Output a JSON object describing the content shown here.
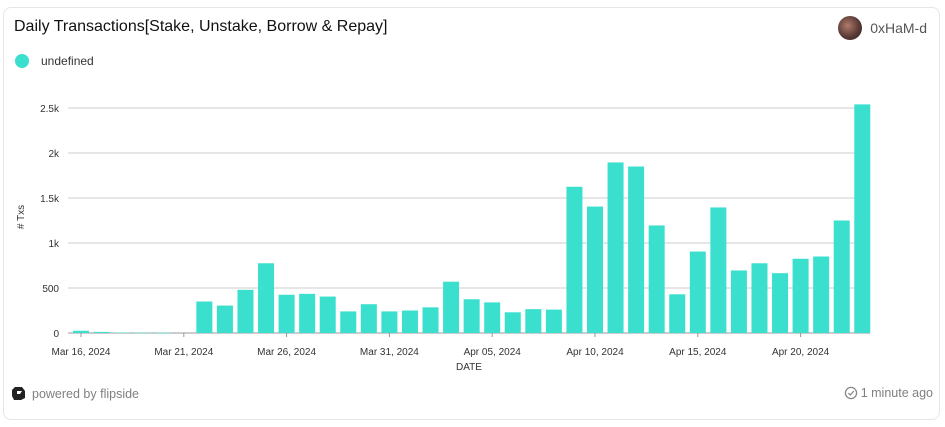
{
  "header": {
    "title": "Daily Transactions[Stake, Unstake, Borrow & Repay]",
    "username": "0xHaM-d"
  },
  "legend": {
    "label": "undefined"
  },
  "footer": {
    "powered_by": "powered by flipside",
    "updated": "1 minute ago"
  },
  "colors": {
    "bar": "#3ae0cd",
    "grid": "#cccccc"
  },
  "chart_data": {
    "type": "bar",
    "xlabel": "DATE",
    "ylabel": "# Txs",
    "ylim": [
      0,
      2500
    ],
    "y_ticks": [
      0,
      500,
      1000,
      1500,
      2000,
      2500
    ],
    "y_tick_labels": [
      "0",
      "500",
      "1k",
      "1.5k",
      "2k",
      "2.5k"
    ],
    "x_tick_labels": [
      {
        "date": "2024-03-16",
        "label": "Mar 16, 2024"
      },
      {
        "date": "2024-03-21",
        "label": "Mar 21, 2024"
      },
      {
        "date": "2024-03-26",
        "label": "Mar 26, 2024"
      },
      {
        "date": "2024-03-31",
        "label": "Mar 31, 2024"
      },
      {
        "date": "2024-04-05",
        "label": "Apr 05, 2024"
      },
      {
        "date": "2024-04-10",
        "label": "Apr 10, 2024"
      },
      {
        "date": "2024-04-15",
        "label": "Apr 15, 2024"
      },
      {
        "date": "2024-04-20",
        "label": "Apr 20, 2024"
      }
    ],
    "grid": true,
    "legend_position": "top-left",
    "series": [
      {
        "name": "undefined",
        "points": [
          {
            "date": "2024-03-16",
            "value": 25
          },
          {
            "date": "2024-03-17",
            "value": 12
          },
          {
            "date": "2024-03-18",
            "value": 5
          },
          {
            "date": "2024-03-19",
            "value": 3
          },
          {
            "date": "2024-03-20",
            "value": 2
          },
          {
            "date": "2024-03-22",
            "value": 350
          },
          {
            "date": "2024-03-23",
            "value": 305
          },
          {
            "date": "2024-03-24",
            "value": 480
          },
          {
            "date": "2024-03-25",
            "value": 775
          },
          {
            "date": "2024-03-26",
            "value": 425
          },
          {
            "date": "2024-03-27",
            "value": 435
          },
          {
            "date": "2024-03-28",
            "value": 405
          },
          {
            "date": "2024-03-29",
            "value": 240
          },
          {
            "date": "2024-03-30",
            "value": 320
          },
          {
            "date": "2024-03-31",
            "value": 240
          },
          {
            "date": "2024-04-01",
            "value": 250
          },
          {
            "date": "2024-04-02",
            "value": 285
          },
          {
            "date": "2024-04-03",
            "value": 570
          },
          {
            "date": "2024-04-04",
            "value": 375
          },
          {
            "date": "2024-04-05",
            "value": 340
          },
          {
            "date": "2024-04-06",
            "value": 230
          },
          {
            "date": "2024-04-07",
            "value": 265
          },
          {
            "date": "2024-04-08",
            "value": 260
          },
          {
            "date": "2024-04-09",
            "value": 1625
          },
          {
            "date": "2024-04-10",
            "value": 1405
          },
          {
            "date": "2024-04-11",
            "value": 1895
          },
          {
            "date": "2024-04-12",
            "value": 1850
          },
          {
            "date": "2024-04-13",
            "value": 1195
          },
          {
            "date": "2024-04-14",
            "value": 430
          },
          {
            "date": "2024-04-15",
            "value": 905
          },
          {
            "date": "2024-04-16",
            "value": 1395
          },
          {
            "date": "2024-04-17",
            "value": 695
          },
          {
            "date": "2024-04-18",
            "value": 775
          },
          {
            "date": "2024-04-19",
            "value": 665
          },
          {
            "date": "2024-04-20",
            "value": 825
          },
          {
            "date": "2024-04-21",
            "value": 850
          },
          {
            "date": "2024-04-22",
            "value": 1250
          },
          {
            "date": "2024-04-23",
            "value": 2540
          }
        ]
      }
    ]
  }
}
